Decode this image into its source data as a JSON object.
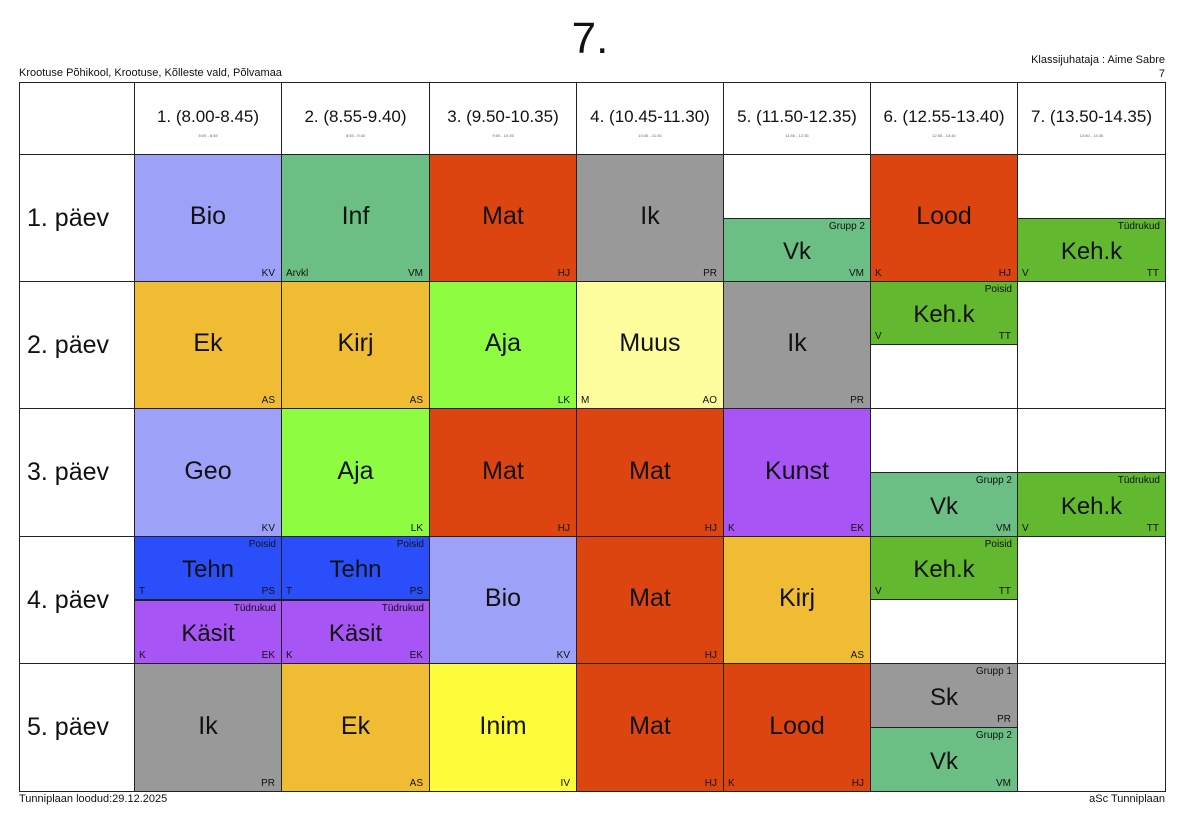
{
  "header": {
    "title": "7.",
    "school": "Krootuse Põhikool, Krootuse, Kõlleste vald, Põlvamaa",
    "teacher_line": "Klassijuhataja : Aime Sabre",
    "teacher_line2": "7"
  },
  "footer": {
    "created": "Tunniplaan loodud:29.12.2025",
    "software": "aSc Tunniplaan"
  },
  "periods": [
    {
      "label": "1. (8.00-8.45)",
      "small": "8:00 - 8:45"
    },
    {
      "label": "2. (8.55-9.40)",
      "small": "8:55 - 9:40"
    },
    {
      "label": "3. (9.50-10.35)",
      "small": "9:50 - 10:35"
    },
    {
      "label": "4. (10.45-11.30)",
      "small": "10:45 - 11:30"
    },
    {
      "label": "5. (11.50-12.35)",
      "small": "11:50 - 12:35"
    },
    {
      "label": "6. (12.55-13.40)",
      "small": "12:55 - 13:40"
    },
    {
      "label": "7. (13.50-14.35)",
      "small": "13:50 - 14:35"
    }
  ],
  "days": [
    "1. päev",
    "2. päev",
    "3. päev",
    "4. päev",
    "5. päev"
  ],
  "colors": {
    "Bio": "#9ea1f8",
    "Geo": "#9ea1f8",
    "Inf": "#6bbf84",
    "Vk": "#6bbf84",
    "Mat": "#dd4510",
    "Lood": "#dd4510",
    "Ik": "#999999",
    "Sk": "#999999",
    "Keh.k": "#62b82f",
    "Ek": "#f0bc34",
    "Kirj": "#f0bc34",
    "Aja": "#8efc41",
    "Muus": "#fdfd9e",
    "Kunst": "#a855f5",
    "Käsit": "#a855f5",
    "Tehn": "#2a4ffa",
    "Inim": "#fcfc3a"
  },
  "lessons": [
    {
      "day": 0,
      "period": 0,
      "part": "full",
      "subject": "Bio",
      "teacher": "KV",
      "room": "",
      "group": ""
    },
    {
      "day": 0,
      "period": 1,
      "part": "full",
      "subject": "Inf",
      "teacher": "VM",
      "room": "Arvkl",
      "group": ""
    },
    {
      "day": 0,
      "period": 2,
      "part": "full",
      "subject": "Mat",
      "teacher": "HJ",
      "room": "",
      "group": ""
    },
    {
      "day": 0,
      "period": 3,
      "part": "full",
      "subject": "Ik",
      "teacher": "PR",
      "room": "",
      "group": ""
    },
    {
      "day": 0,
      "period": 4,
      "part": "bottom",
      "subject": "Vk",
      "teacher": "VM",
      "room": "",
      "group": "Grupp 2"
    },
    {
      "day": 0,
      "period": 5,
      "part": "full",
      "subject": "Lood",
      "teacher": "HJ",
      "room": "K",
      "group": ""
    },
    {
      "day": 0,
      "period": 6,
      "part": "bottom",
      "subject": "Keh.k",
      "teacher": "TT",
      "room": "V",
      "group": "Tüdrukud"
    },
    {
      "day": 1,
      "period": 0,
      "part": "full",
      "subject": "Ek",
      "teacher": "AS",
      "room": "",
      "group": ""
    },
    {
      "day": 1,
      "period": 1,
      "part": "full",
      "subject": "Kirj",
      "teacher": "AS",
      "room": "",
      "group": ""
    },
    {
      "day": 1,
      "period": 2,
      "part": "full",
      "subject": "Aja",
      "teacher": "LK",
      "room": "",
      "group": ""
    },
    {
      "day": 1,
      "period": 3,
      "part": "full",
      "subject": "Muus",
      "teacher": "AO",
      "room": "M",
      "group": ""
    },
    {
      "day": 1,
      "period": 4,
      "part": "full",
      "subject": "Ik",
      "teacher": "PR",
      "room": "",
      "group": ""
    },
    {
      "day": 1,
      "period": 5,
      "part": "top",
      "subject": "Keh.k",
      "teacher": "TT",
      "room": "V",
      "group": "Poisid"
    },
    {
      "day": 2,
      "period": 0,
      "part": "full",
      "subject": "Geo",
      "teacher": "KV",
      "room": "",
      "group": ""
    },
    {
      "day": 2,
      "period": 1,
      "part": "full",
      "subject": "Aja",
      "teacher": "LK",
      "room": "",
      "group": ""
    },
    {
      "day": 2,
      "period": 2,
      "part": "full",
      "subject": "Mat",
      "teacher": "HJ",
      "room": "",
      "group": ""
    },
    {
      "day": 2,
      "period": 3,
      "part": "full",
      "subject": "Mat",
      "teacher": "HJ",
      "room": "",
      "group": ""
    },
    {
      "day": 2,
      "period": 4,
      "part": "full",
      "subject": "Kunst",
      "teacher": "EK",
      "room": "K",
      "group": ""
    },
    {
      "day": 2,
      "period": 5,
      "part": "bottom",
      "subject": "Vk",
      "teacher": "VM",
      "room": "",
      "group": "Grupp 2"
    },
    {
      "day": 2,
      "period": 6,
      "part": "bottom",
      "subject": "Keh.k",
      "teacher": "TT",
      "room": "V",
      "group": "Tüdrukud"
    },
    {
      "day": 3,
      "period": 0,
      "part": "top",
      "subject": "Tehn",
      "teacher": "PS",
      "room": "T",
      "group": "Poisid"
    },
    {
      "day": 3,
      "period": 0,
      "part": "bottom",
      "subject": "Käsit",
      "teacher": "EK",
      "room": "K",
      "group": "Tüdrukud"
    },
    {
      "day": 3,
      "period": 1,
      "part": "top",
      "subject": "Tehn",
      "teacher": "PS",
      "room": "T",
      "group": "Poisid"
    },
    {
      "day": 3,
      "period": 1,
      "part": "bottom",
      "subject": "Käsit",
      "teacher": "EK",
      "room": "K",
      "group": "Tüdrukud"
    },
    {
      "day": 3,
      "period": 2,
      "part": "full",
      "subject": "Bio",
      "teacher": "KV",
      "room": "",
      "group": ""
    },
    {
      "day": 3,
      "period": 3,
      "part": "full",
      "subject": "Mat",
      "teacher": "HJ",
      "room": "",
      "group": ""
    },
    {
      "day": 3,
      "period": 4,
      "part": "full",
      "subject": "Kirj",
      "teacher": "AS",
      "room": "",
      "group": ""
    },
    {
      "day": 3,
      "period": 5,
      "part": "top",
      "subject": "Keh.k",
      "teacher": "TT",
      "room": "V",
      "group": "Poisid"
    },
    {
      "day": 4,
      "period": 0,
      "part": "full",
      "subject": "Ik",
      "teacher": "PR",
      "room": "",
      "group": ""
    },
    {
      "day": 4,
      "period": 1,
      "part": "full",
      "subject": "Ek",
      "teacher": "AS",
      "room": "",
      "group": ""
    },
    {
      "day": 4,
      "period": 2,
      "part": "full",
      "subject": "Inim",
      "teacher": "IV",
      "room": "",
      "group": ""
    },
    {
      "day": 4,
      "period": 3,
      "part": "full",
      "subject": "Mat",
      "teacher": "HJ",
      "room": "",
      "group": ""
    },
    {
      "day": 4,
      "period": 4,
      "part": "full",
      "subject": "Lood",
      "teacher": "HJ",
      "room": "K",
      "group": ""
    },
    {
      "day": 4,
      "period": 5,
      "part": "top",
      "subject": "Sk",
      "teacher": "PR",
      "room": "",
      "group": "Grupp 1"
    },
    {
      "day": 4,
      "period": 5,
      "part": "bottom",
      "subject": "Vk",
      "teacher": "VM",
      "room": "",
      "group": "Grupp 2"
    }
  ]
}
